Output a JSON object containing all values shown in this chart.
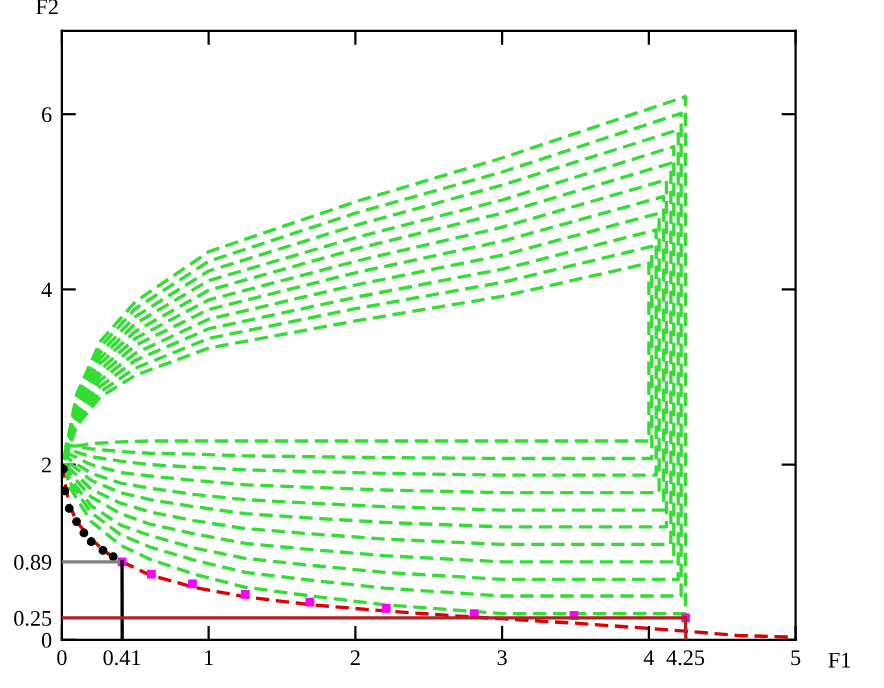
{
  "chart_data": {
    "type": "line",
    "xlabel": "F1",
    "ylabel": "F2",
    "xlim": [
      0,
      5
    ],
    "ylim": [
      0,
      6.95
    ],
    "xticks": [
      0,
      {
        "value": 0.41,
        "label": "0.41"
      },
      1,
      2,
      3,
      4,
      {
        "value": 4.25,
        "label": "4.25"
      },
      5
    ],
    "yticks": [
      0,
      {
        "value": 0.25,
        "label": "0.25"
      },
      {
        "value": 0.89,
        "label": "0.89"
      },
      2,
      4,
      6
    ],
    "grid": false,
    "legend": false,
    "series": [
      {
        "type": "line",
        "line_style": "dashed",
        "color": "#33dd33",
        "x": [
          0.02,
          0.1,
          0.26,
          0.5,
          1,
          2,
          3,
          4.25,
          4.25,
          3.0,
          2.2,
          1.7,
          1.25,
          0.9,
          0.6,
          0.4,
          0.2,
          0.05,
          0.02
        ],
        "values": [
          2.1,
          2.8,
          3.4,
          3.86,
          4.43,
          5.0,
          5.5,
          6.2,
          0.3,
          0.3,
          0.4,
          0.5,
          0.6,
          0.75,
          0.92,
          1.08,
          1.35,
          1.75,
          2.0
        ]
      },
      {
        "type": "line",
        "line_style": "dashed",
        "color": "#33dd33",
        "x": [
          0.02,
          0.1,
          0.26,
          0.5,
          1,
          2,
          3,
          4.22,
          4.22,
          3.0,
          2.2,
          1.7,
          1.25,
          0.9,
          0.6,
          0.4,
          0.2,
          0.05,
          0.02
        ],
        "values": [
          2.1,
          2.76,
          3.34,
          3.78,
          4.32,
          4.87,
          5.34,
          6.01,
          0.5,
          0.5,
          0.59,
          0.68,
          0.77,
          0.91,
          1.06,
          1.2,
          1.45,
          1.81,
          2.03
        ]
      },
      {
        "type": "line",
        "line_style": "dashed",
        "color": "#33dd33",
        "x": [
          0.02,
          0.1,
          0.26,
          0.5,
          1,
          2,
          3,
          4.2,
          4.2,
          3.0,
          2.2,
          1.7,
          1.25,
          0.9,
          0.6,
          0.4,
          0.2,
          0.05,
          0.02
        ],
        "values": [
          2.09,
          2.73,
          3.27,
          3.69,
          4.21,
          4.73,
          5.19,
          5.82,
          0.69,
          0.69,
          0.77,
          0.85,
          0.93,
          1.05,
          1.19,
          1.31,
          1.53,
          1.85,
          2.05
        ]
      },
      {
        "type": "line",
        "line_style": "dashed",
        "color": "#33dd33",
        "x": [
          0.02,
          0.1,
          0.26,
          0.5,
          1,
          2,
          3,
          4.17,
          4.17,
          3.0,
          2.2,
          1.7,
          1.25,
          0.9,
          0.6,
          0.4,
          0.2,
          0.05,
          0.02
        ],
        "values": [
          2.09,
          2.69,
          3.21,
          3.61,
          4.1,
          4.59,
          5.02,
          5.63,
          0.89,
          0.89,
          0.96,
          1.03,
          1.1,
          1.21,
          1.32,
          1.44,
          1.63,
          1.91,
          2.08
        ]
      },
      {
        "type": "line",
        "line_style": "dashed",
        "color": "#33dd33",
        "x": [
          0.02,
          0.1,
          0.26,
          0.5,
          1,
          2,
          3,
          4.15,
          4.15,
          3.0,
          2.2,
          1.7,
          1.25,
          0.9,
          0.6,
          0.4,
          0.2,
          0.05,
          0.02
        ],
        "values": [
          2.08,
          2.66,
          3.15,
          3.52,
          3.99,
          4.46,
          4.87,
          5.44,
          1.09,
          1.09,
          1.15,
          1.21,
          1.27,
          1.36,
          1.46,
          1.56,
          1.72,
          1.96,
          2.11
        ]
      },
      {
        "type": "line",
        "line_style": "dashed",
        "color": "#33dd33",
        "x": [
          0.02,
          0.1,
          0.26,
          0.5,
          1,
          2,
          3,
          4.12,
          4.12,
          3.0,
          2.2,
          1.7,
          1.25,
          0.9,
          0.6,
          0.4,
          0.2,
          0.05,
          0.02
        ],
        "values": [
          2.08,
          2.62,
          3.08,
          3.44,
          3.88,
          4.32,
          4.71,
          5.25,
          1.29,
          1.29,
          1.34,
          1.39,
          1.44,
          1.52,
          1.6,
          1.68,
          1.82,
          2.02,
          2.14
        ]
      },
      {
        "type": "line",
        "line_style": "dashed",
        "color": "#33dd33",
        "x": [
          0.02,
          0.1,
          0.26,
          0.5,
          1,
          2,
          3,
          4.1,
          4.1,
          3.0,
          2.2,
          1.7,
          1.25,
          0.9,
          0.6,
          0.4,
          0.2,
          0.05,
          0.02
        ],
        "values": [
          2.07,
          2.58,
          3.02,
          3.36,
          3.77,
          4.19,
          4.55,
          5.06,
          1.48,
          1.48,
          1.52,
          1.56,
          1.6,
          1.66,
          1.73,
          1.79,
          1.9,
          2.06,
          2.16
        ]
      },
      {
        "type": "line",
        "line_style": "dashed",
        "color": "#33dd33",
        "x": [
          0.02,
          0.1,
          0.26,
          0.5,
          1,
          2,
          3,
          4.07,
          4.07,
          3.0,
          2.2,
          1.7,
          1.25,
          0.9,
          0.6,
          0.4,
          0.2,
          0.05,
          0.02
        ],
        "values": [
          2.07,
          2.55,
          2.96,
          3.27,
          3.66,
          4.05,
          4.39,
          4.87,
          1.68,
          1.68,
          1.71,
          1.74,
          1.77,
          1.82,
          1.87,
          1.91,
          2.0,
          2.12,
          2.19
        ]
      },
      {
        "type": "line",
        "line_style": "dashed",
        "color": "#33dd33",
        "x": [
          0.02,
          0.1,
          0.26,
          0.5,
          1,
          2,
          3,
          4.05,
          4.05,
          3.0,
          2.2,
          1.7,
          1.25,
          0.9,
          0.6,
          0.4,
          0.2,
          0.05,
          0.02
        ],
        "values": [
          2.06,
          2.51,
          2.89,
          3.19,
          3.55,
          3.91,
          4.23,
          4.68,
          1.88,
          1.88,
          1.9,
          1.92,
          1.94,
          1.97,
          2.0,
          2.04,
          2.09,
          2.17,
          2.22
        ]
      },
      {
        "type": "line",
        "line_style": "dashed",
        "color": "#33dd33",
        "x": [
          0.02,
          0.1,
          0.26,
          0.5,
          1,
          2,
          3,
          4.02,
          4.02,
          3.0,
          2.2,
          1.7,
          1.25,
          0.9,
          0.6,
          0.4,
          0.2,
          0.05,
          0.02
        ],
        "values": [
          2.06,
          2.47,
          2.83,
          3.1,
          3.44,
          3.78,
          4.08,
          4.49,
          2.07,
          2.07,
          2.08,
          2.09,
          2.1,
          2.12,
          2.13,
          2.15,
          2.18,
          2.22,
          2.24
        ]
      },
      {
        "type": "line",
        "line_style": "dashed",
        "color": "#33dd33",
        "x": [
          0.02,
          0.1,
          0.26,
          0.5,
          1,
          2,
          3,
          4.0,
          4.0,
          3.0,
          2.2,
          1.7,
          1.25,
          0.9,
          0.6,
          0.4,
          0.2,
          0.05,
          0.02
        ],
        "values": [
          2.05,
          2.44,
          2.77,
          3.02,
          3.33,
          3.64,
          3.92,
          4.3,
          2.27,
          2.27,
          2.27,
          2.27,
          2.27,
          2.27,
          2.27,
          2.26,
          2.24,
          2.2,
          2.15
        ]
      },
      {
        "type": "line",
        "line_style": "dashed",
        "color": "#dd0000",
        "x": [
          0,
          0.02,
          0.05,
          0.1,
          0.2,
          0.3,
          0.41,
          0.6,
          0.9,
          1.25,
          1.7,
          2.2,
          2.8,
          3.5,
          4.25,
          4.6,
          5
        ],
        "values": [
          2.0,
          1.8,
          1.55,
          1.35,
          1.15,
          1.0,
          0.89,
          0.74,
          0.6,
          0.49,
          0.4,
          0.33,
          0.26,
          0.19,
          0.1,
          0.05,
          0.03
        ]
      },
      {
        "type": "line",
        "line_style": "solid",
        "color": "#808080",
        "x": [
          0,
          0.41
        ],
        "values": [
          0.89,
          0.89
        ]
      },
      {
        "line_style": "solid",
        "color": "#000000",
        "x": [
          0.41,
          0.411
        ],
        "values": [
          0.89,
          0
        ]
      },
      {
        "line_style": "solid",
        "color": "#b22222",
        "x": [
          0,
          4.25
        ],
        "values": [
          0.25,
          0.25
        ]
      },
      {
        "line_style": "solid",
        "color": "#b22222",
        "x": [
          4.25,
          4.252
        ],
        "values": [
          0.25,
          0
        ]
      },
      {
        "type": "scatter",
        "marker": "circle",
        "color": "#000000",
        "x": [
          0.01,
          0.02,
          0.05,
          0.1,
          0.15,
          0.2,
          0.28,
          0.35
        ],
        "values": [
          1.95,
          1.7,
          1.5,
          1.35,
          1.22,
          1.12,
          1.02,
          0.95
        ]
      },
      {
        "type": "scatter",
        "marker": "square",
        "color": "#ff00ff",
        "x": [
          0.41,
          0.61,
          0.89,
          1.25,
          1.69,
          2.21,
          2.81,
          3.49,
          4.25
        ],
        "values": [
          0.89,
          0.75,
          0.64,
          0.52,
          0.43,
          0.36,
          0.3,
          0.28,
          0.25
        ]
      }
    ]
  }
}
